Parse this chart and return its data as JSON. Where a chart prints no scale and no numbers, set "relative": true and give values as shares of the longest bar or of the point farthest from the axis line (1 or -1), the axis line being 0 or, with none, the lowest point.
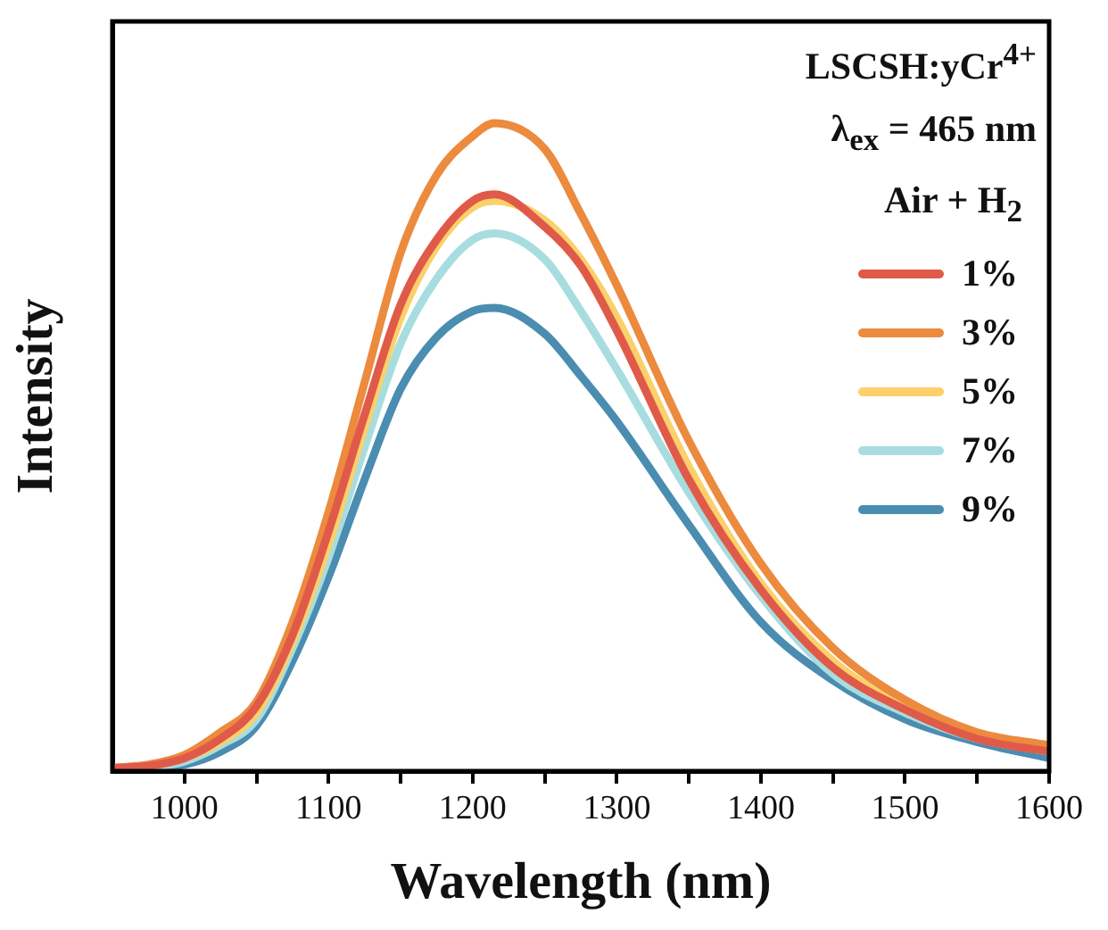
{
  "chart_data": {
    "type": "line",
    "relative": true,
    "xlabel": "Wavelength (nm)",
    "ylabel": "Intensity",
    "annotations": [
      "LSCSH:yCr$^{4+}$",
      "λ$_{ex}$ = 465 nm"
    ],
    "legend_title": "Air + H$_{2}$",
    "legend": "top right",
    "grid": false,
    "marker": "none",
    "line_style": "solid",
    "xlim": [
      950,
      1600
    ],
    "xticks": [
      1000,
      {
        "value": 1050,
        "label": null
      },
      1100,
      {
        "value": 1150,
        "label": null
      },
      1200,
      {
        "value": 1250,
        "label": null
      },
      1300,
      {
        "value": 1350,
        "label": null
      },
      1400,
      {
        "value": 1450,
        "label": null
      },
      1500,
      {
        "value": 1550,
        "label": null
      },
      1600
    ],
    "x": [
      950,
      975,
      1000,
      1025,
      1050,
      1075,
      1100,
      1125,
      1150,
      1175,
      1200,
      1215,
      1250,
      1275,
      1300,
      1350,
      1400,
      1450,
      1500,
      1550,
      1600
    ],
    "series": [
      {
        "name": "1%",
        "color": "#e05a4a",
        "values": [
          0.005,
          0.008,
          0.02,
          0.05,
          0.1,
          0.21,
          0.37,
          0.55,
          0.72,
          0.82,
          0.88,
          0.89,
          0.84,
          0.78,
          0.68,
          0.45,
          0.28,
          0.16,
          0.095,
          0.05,
          0.03
        ]
      },
      {
        "name": "3%",
        "color": "#ec8a3e",
        "values": [
          0.005,
          0.01,
          0.025,
          0.06,
          0.107,
          0.23,
          0.4,
          0.6,
          0.8,
          0.92,
          0.98,
          1.0,
          0.96,
          0.86,
          0.75,
          0.51,
          0.32,
          0.19,
          0.11,
          0.06,
          0.04
        ]
      },
      {
        "name": "5%",
        "color": "#fcd06a",
        "values": [
          0.005,
          0.008,
          0.02,
          0.045,
          0.09,
          0.2,
          0.35,
          0.53,
          0.7,
          0.81,
          0.87,
          0.88,
          0.85,
          0.79,
          0.7,
          0.47,
          0.29,
          0.17,
          0.1,
          0.055,
          0.035
        ]
      },
      {
        "name": "7%",
        "color": "#a8dde0",
        "values": [
          0.004,
          0.006,
          0.015,
          0.04,
          0.08,
          0.19,
          0.33,
          0.5,
          0.66,
          0.76,
          0.82,
          0.83,
          0.79,
          0.71,
          0.62,
          0.43,
          0.27,
          0.15,
          0.09,
          0.05,
          0.03
        ]
      },
      {
        "name": "9%",
        "color": "#4a8db0",
        "values": [
          0.003,
          0.004,
          0.01,
          0.03,
          0.07,
          0.17,
          0.3,
          0.45,
          0.59,
          0.67,
          0.71,
          0.715,
          0.675,
          0.61,
          0.54,
          0.38,
          0.23,
          0.14,
          0.08,
          0.045,
          0.02
        ]
      }
    ]
  }
}
